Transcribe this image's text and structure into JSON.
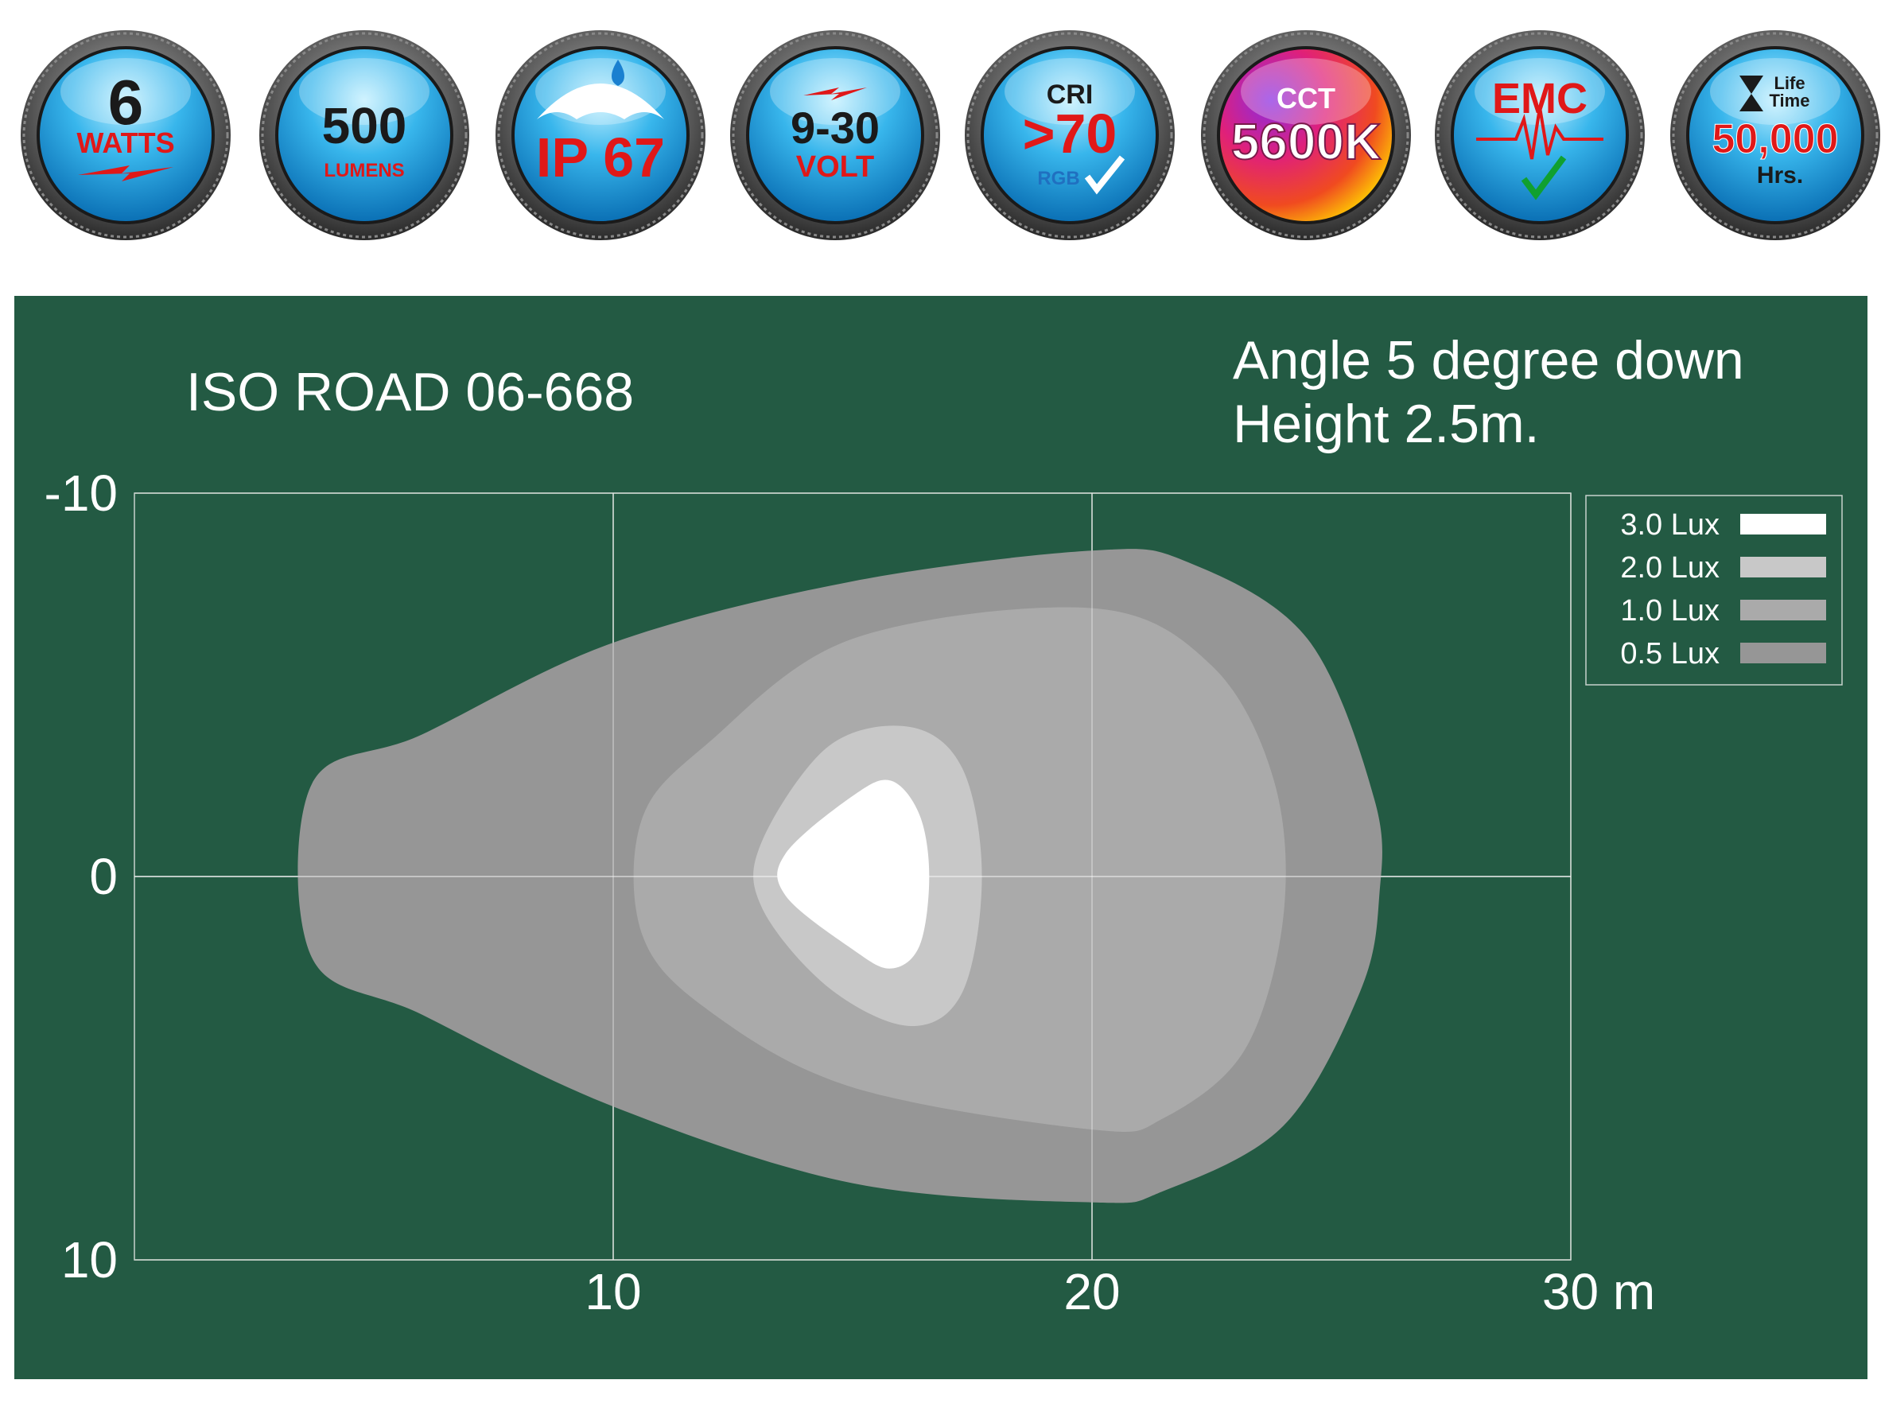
{
  "badges": [
    {
      "id": "watts",
      "top": "6",
      "bottom": "WATTS",
      "icon": "lightning-bolt-icon"
    },
    {
      "id": "lumens",
      "top": "500",
      "bottom": "LUMENS"
    },
    {
      "id": "ip",
      "top": "IP 67",
      "icon": "umbrella-rain-drop-icon"
    },
    {
      "id": "volt",
      "top": "9-30",
      "bottom": "VOLT",
      "icon": "lightning-bolt-icon"
    },
    {
      "id": "cri",
      "top": "CRI",
      "main": ">70",
      "bottom": "RGB",
      "icon": "checkmark-icon"
    },
    {
      "id": "cct",
      "top": "CCT",
      "main": "5600K"
    },
    {
      "id": "emc",
      "top": "EMC",
      "icon": "signal-wave-checkmark-icon"
    },
    {
      "id": "life",
      "top": "Life Time",
      "main": "50,000",
      "bottom": "Hrs.",
      "icon": "hourglass-icon"
    }
  ],
  "header": {
    "title": "ISO ROAD 06-668",
    "angle": "Angle 5 degree down",
    "height": "Height 2.5m."
  },
  "chart_data": {
    "type": "area",
    "xlim": [
      0,
      30
    ],
    "ylim": [
      -10,
      10
    ],
    "x_ticks": [
      "10",
      "20",
      "30 m"
    ],
    "y_ticks": [
      "-10",
      "0",
      "10"
    ],
    "x_tick_values": [
      10,
      20,
      30
    ],
    "y_tick_values": [
      -10,
      0,
      10
    ],
    "grid": true,
    "legend_position": "top-right",
    "series": [
      {
        "name": "0.5 Lux",
        "color": "#969696",
        "points": [
          [
            3.7,
            -2.4
          ],
          [
            6,
            -3.7
          ],
          [
            10,
            -6.1
          ],
          [
            15,
            -7.7
          ],
          [
            20,
            -8.5
          ],
          [
            22,
            -8.2
          ],
          [
            24.5,
            -6.2
          ],
          [
            25.9,
            -2
          ],
          [
            26,
            0.5
          ],
          [
            25.6,
            3
          ],
          [
            24,
            6.5
          ],
          [
            21.5,
            8.2
          ],
          [
            20,
            8.5
          ],
          [
            15,
            8
          ],
          [
            10,
            6
          ],
          [
            6,
            3.6
          ],
          [
            3.7,
            2.1
          ]
        ]
      },
      {
        "name": "1.0 Lux",
        "color": "#aaaaaa",
        "points": [
          [
            10.6,
            -1.5
          ],
          [
            12,
            -3.5
          ],
          [
            15,
            -6.2
          ],
          [
            20,
            -7
          ],
          [
            22.5,
            -5.5
          ],
          [
            23.8,
            -2.5
          ],
          [
            24,
            1
          ],
          [
            23.2,
            4.5
          ],
          [
            21.5,
            6.3
          ],
          [
            20,
            6.6
          ],
          [
            15,
            5.5
          ],
          [
            12,
            3.5
          ],
          [
            10.6,
            1.5
          ]
        ]
      },
      {
        "name": "2.0 Lux",
        "color": "#c8c8c8",
        "points": [
          [
            13.1,
            -0.9
          ],
          [
            14.5,
            -3.4
          ],
          [
            16.2,
            -3.9
          ],
          [
            17.3,
            -2.8
          ],
          [
            17.7,
            0
          ],
          [
            17.3,
            3
          ],
          [
            16.2,
            3.9
          ],
          [
            14.5,
            2.9
          ],
          [
            13.1,
            0.8
          ]
        ]
      },
      {
        "name": "3.0 Lux",
        "color": "#ffffff",
        "points": [
          [
            13.6,
            -0.6
          ],
          [
            15,
            -2.1
          ],
          [
            15.8,
            -2.5
          ],
          [
            16.4,
            -1.6
          ],
          [
            16.6,
            0
          ],
          [
            16.4,
            1.8
          ],
          [
            15.8,
            2.4
          ],
          [
            15,
            1.9
          ],
          [
            13.6,
            0.5
          ]
        ]
      }
    ],
    "grid_line_color": "#c8d2cc",
    "text_color": "#ffffff"
  }
}
